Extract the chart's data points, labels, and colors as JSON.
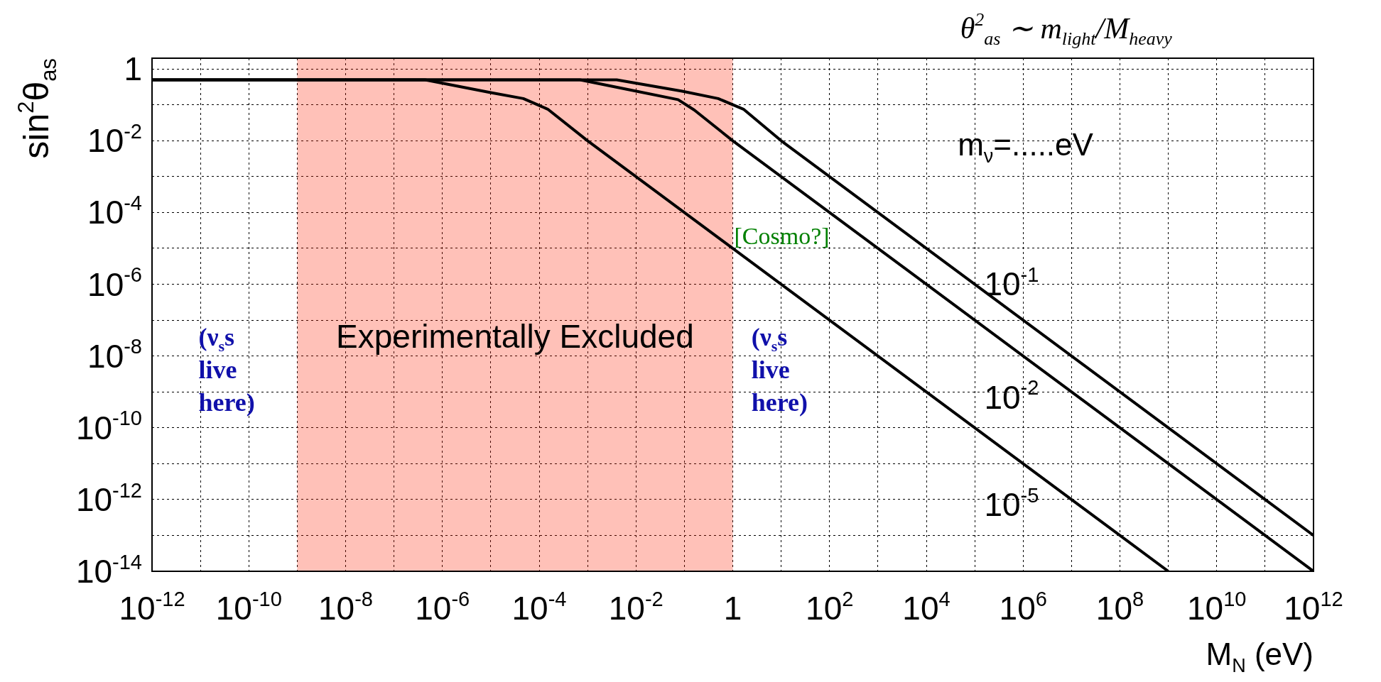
{
  "chart_data": {
    "type": "line",
    "title": "θ$^{2}$$_{as}$ ∼ m$_{light}$/M$_{heavy}$",
    "xlabel": "M$_{N}$ (eV)",
    "ylabel": "sin$^{2}$θ$_{as}$",
    "log": "xy",
    "grid": true,
    "legend": false,
    "xlim": [
      1e-12,
      1000000000000.0
    ],
    "xticks": [
      {
        "value": 1e-12,
        "label": "10$^{-12}$"
      },
      {
        "value": 1e-11,
        "label": null
      },
      {
        "value": 1e-10,
        "label": "10$^{-10}$"
      },
      {
        "value": 1e-09,
        "label": null
      },
      {
        "value": 1e-08,
        "label": "10$^{-8}$"
      },
      {
        "value": 1e-07,
        "label": null
      },
      {
        "value": 1e-06,
        "label": "10$^{-6}$"
      },
      {
        "value": 1e-05,
        "label": null
      },
      {
        "value": 0.0001,
        "label": "10$^{-4}$"
      },
      {
        "value": 0.001,
        "label": null
      },
      {
        "value": 0.01,
        "label": "10$^{-2}$"
      },
      {
        "value": 0.1,
        "label": null
      },
      1,
      {
        "value": 10,
        "label": null
      },
      {
        "value": 100,
        "label": "10$^{2}$"
      },
      {
        "value": 1000,
        "label": null
      },
      {
        "value": 10000.0,
        "label": "10$^{4}$"
      },
      {
        "value": 100000.0,
        "label": null
      },
      {
        "value": 1000000.0,
        "label": "10$^{6}$"
      },
      {
        "value": 10000000.0,
        "label": null
      },
      {
        "value": 100000000.0,
        "label": "10$^{8}$"
      },
      {
        "value": 1000000000.0,
        "label": null
      },
      {
        "value": 10000000000.0,
        "label": "10$^{10}$"
      },
      {
        "value": 100000000000.0,
        "label": null
      },
      {
        "value": 1000000000000.0,
        "label": "10$^{12}$"
      }
    ],
    "ylim": [
      1e-14,
      2
    ],
    "yticks": [
      1,
      {
        "value": 0.1,
        "label": null
      },
      {
        "value": 0.01,
        "label": "10$^{-2}$"
      },
      {
        "value": 0.001,
        "label": null
      },
      {
        "value": 0.0001,
        "label": "10$^{-4}$"
      },
      {
        "value": 1e-05,
        "label": null
      },
      {
        "value": 1e-06,
        "label": "10$^{-6}$"
      },
      {
        "value": 1e-07,
        "label": null
      },
      {
        "value": 1e-08,
        "label": "10$^{-8}$"
      },
      {
        "value": 1e-09,
        "label": null
      },
      {
        "value": 1e-10,
        "label": "10$^{-10}$"
      },
      {
        "value": 1e-11,
        "label": null
      },
      {
        "value": 1e-12,
        "label": "10$^{-12}$"
      },
      {
        "value": 1e-13,
        "label": null
      },
      {
        "value": 1e-14,
        "label": "10$^{-14}$"
      }
    ],
    "series": [
      {
        "name": "10$^{-1}$",
        "color": "#000000",
        "x": [
          1e-12,
          0.004,
          0.09,
          0.5,
          1.66,
          10,
          1000000000000.0
        ],
        "values": [
          0.5,
          0.5,
          0.24,
          0.15,
          0.076,
          0.01,
          1e-13
        ]
      },
      {
        "name": "10$^{-2}$",
        "color": "#000000",
        "x": [
          1e-12,
          0.0007,
          0.0059,
          0.074,
          0.16,
          1,
          1000000000000.0
        ],
        "values": [
          0.5,
          0.5,
          0.28,
          0.14,
          0.072,
          0.01,
          1e-14
        ]
      },
      {
        "name": "10$^{-5}$",
        "color": "#000000",
        "x": [
          1e-12,
          4.4e-07,
          1e-05,
          4.7e-05,
          0.00015,
          0.001,
          1000000000.0
        ],
        "values": [
          0.5,
          0.5,
          0.22,
          0.15,
          0.076,
          0.01,
          1e-14
        ]
      }
    ],
    "bands": [
      {
        "axis": "x",
        "from": 1e-09,
        "to": 1,
        "label": "Experimentally Excluded",
        "color": "#ff2200"
      }
    ],
    "annotations": [
      "m$_{ν}$=.....eV",
      "(ν$_{s}$s live here)",
      "(ν$_{s}$s live here)",
      {
        "text": "[Cosmo?]",
        "x": 1,
        "y": 1e-05
      }
    ]
  }
}
